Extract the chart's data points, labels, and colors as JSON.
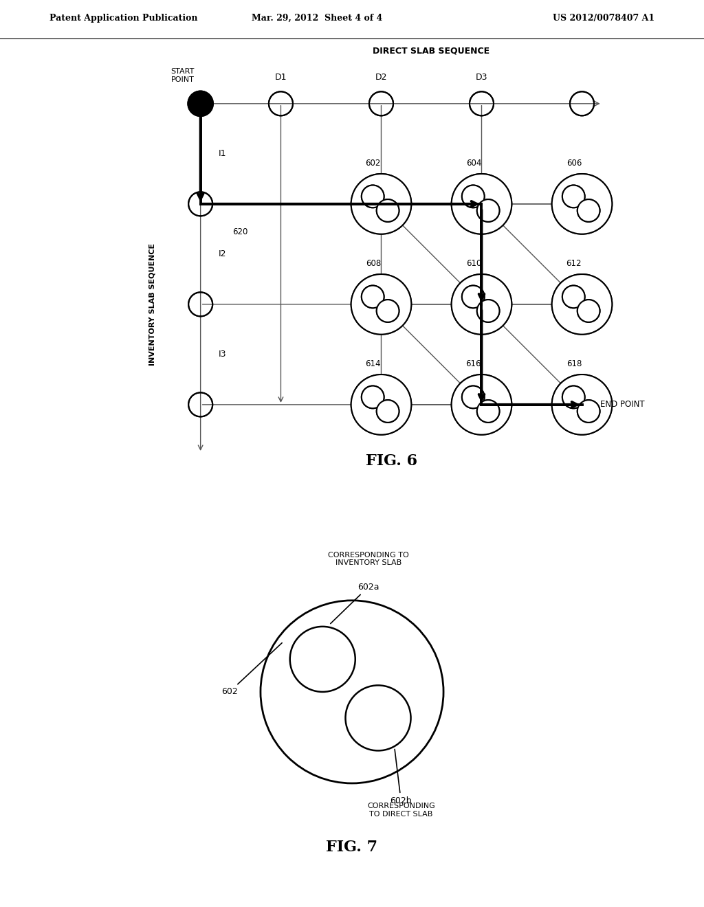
{
  "bg_color": "#ffffff",
  "header_left": "Patent Application Publication",
  "header_mid": "Mar. 29, 2012  Sheet 4 of 4",
  "header_right": "US 2012/0078407 A1",
  "fig6_title": "FIG. 6",
  "fig7_title": "FIG. 7",
  "direct_slab_sequence_label": "DIRECT SLAB SEQUENCE",
  "inventory_slab_sequence_label": "INVENTORY SLAB SEQUENCE",
  "start_point_label": "START\nPOINT",
  "end_point_label": "END POINT",
  "d_labels": [
    "D1",
    "D2",
    "D3"
  ],
  "i_labels": [
    "I1",
    "I2",
    "I3"
  ],
  "line_color": "#555555",
  "bold_path_color": "#000000"
}
